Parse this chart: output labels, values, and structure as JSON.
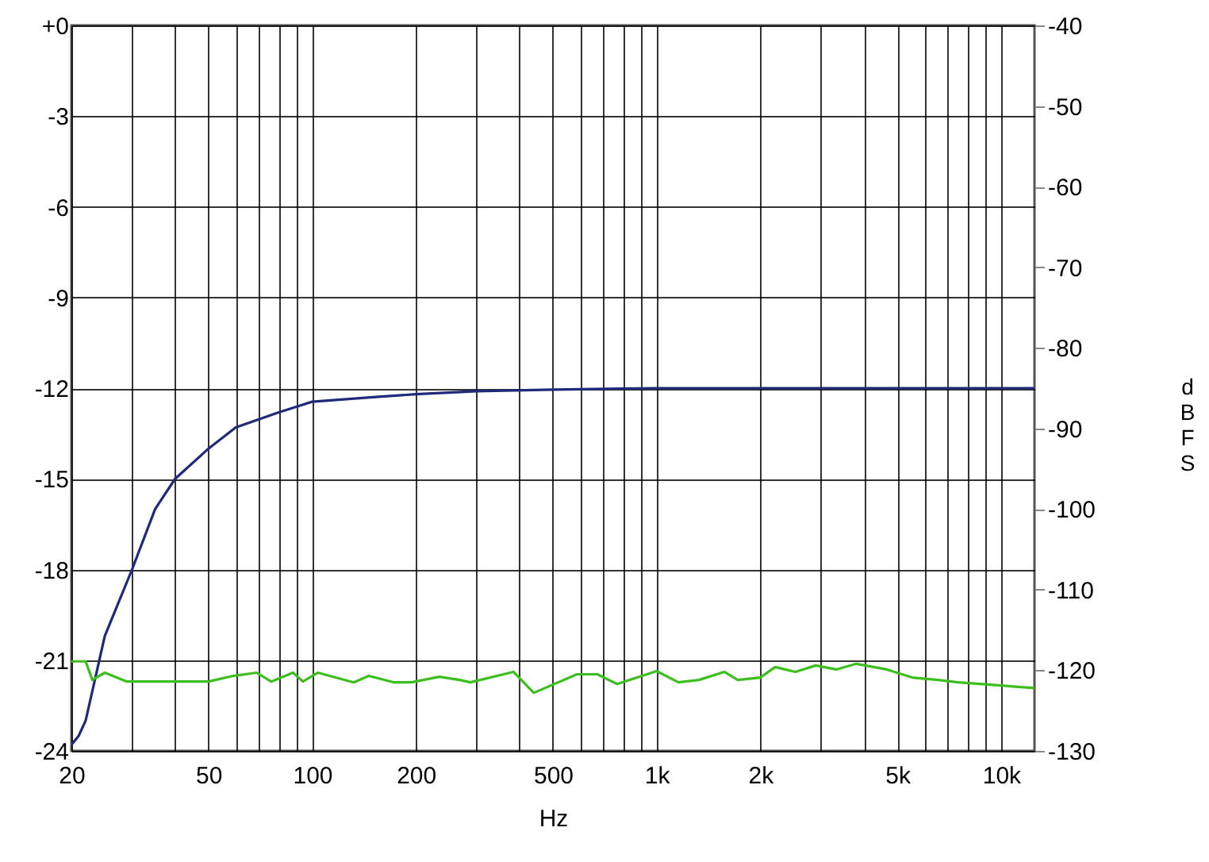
{
  "chart_data": {
    "type": "line",
    "xlabel": "Hz",
    "y2label": "dBFS",
    "log": "x",
    "grid": true,
    "marker": "none",
    "line_style": "solid",
    "xlim": [
      20,
      12500
    ],
    "xticks": [
      20,
      {
        "value": 30,
        "label": null
      },
      {
        "value": 40,
        "label": null
      },
      50,
      {
        "value": 60,
        "label": null
      },
      {
        "value": 70,
        "label": null
      },
      {
        "value": 80,
        "label": null
      },
      {
        "value": 90,
        "label": null
      },
      100,
      200,
      {
        "value": 300,
        "label": null
      },
      {
        "value": 400,
        "label": null
      },
      500,
      {
        "value": 600,
        "label": null
      },
      {
        "value": 700,
        "label": null
      },
      {
        "value": 800,
        "label": null
      },
      {
        "value": 900,
        "label": null
      },
      {
        "value": 1000,
        "label": "1k"
      },
      {
        "value": 2000,
        "label": "2k"
      },
      {
        "value": 3000,
        "label": null
      },
      {
        "value": 4000,
        "label": null
      },
      {
        "value": 5000,
        "label": "5k"
      },
      {
        "value": 6000,
        "label": null
      },
      {
        "value": 7000,
        "label": null
      },
      {
        "value": 8000,
        "label": null
      },
      {
        "value": 9000,
        "label": null
      },
      {
        "value": 10000,
        "label": "10k"
      }
    ],
    "ylim": [
      -24,
      0
    ],
    "yticks": [
      {
        "value": 0,
        "label": "+0"
      },
      -3,
      -6,
      -9,
      -12,
      -15,
      -18,
      -21,
      -24
    ],
    "y2lim": [
      -130,
      -40
    ],
    "y2ticks": [
      -40,
      -50,
      -60,
      -70,
      -80,
      -90,
      -100,
      -110,
      -120,
      -130
    ],
    "series": [
      {
        "color": "#1f2a7a",
        "x": [
          20,
          21,
          22,
          25,
          30,
          35,
          40,
          50,
          60,
          80,
          100,
          150,
          200,
          300,
          500,
          1000,
          2000,
          5000,
          10000,
          12500
        ],
        "values": [
          -23.8,
          -23.5,
          -23.0,
          -20.2,
          -18.0,
          -16.0,
          -15.0,
          -14.0,
          -13.3,
          -12.8,
          -12.45,
          -12.3,
          -12.2,
          -12.1,
          -12.05,
          -12.0,
          -12.0,
          -12.0,
          -12.0,
          -12.0
        ]
      },
      {
        "color": "#3cbf1e",
        "axis": "y2",
        "x": [
          20,
          22,
          23,
          25,
          29,
          50,
          59,
          69,
          76,
          88,
          94,
          104,
          132,
          146,
          173,
          194,
          234,
          268,
          288,
          384,
          440,
          587,
          673,
          768,
          1000,
          1157,
          1327,
          1572,
          1720,
          2000,
          2208,
          2529,
          2899,
          3318,
          3802,
          4657,
          5520,
          6546,
          7500,
          12500
        ],
        "values": [
          -118.9,
          -118.9,
          -121.2,
          -120.3,
          -121.4,
          -121.4,
          -120.7,
          -120.3,
          -121.4,
          -120.3,
          -121.4,
          -120.3,
          -121.5,
          -120.7,
          -121.5,
          -121.5,
          -120.8,
          -121.2,
          -121.5,
          -120.2,
          -122.8,
          -120.5,
          -120.5,
          -121.7,
          -120.1,
          -121.5,
          -121.2,
          -120.2,
          -121.2,
          -120.9,
          -119.6,
          -120.2,
          -119.4,
          -119.9,
          -119.2,
          -119.9,
          -120.9,
          -121.2,
          -121.5,
          -122.2
        ]
      }
    ]
  }
}
